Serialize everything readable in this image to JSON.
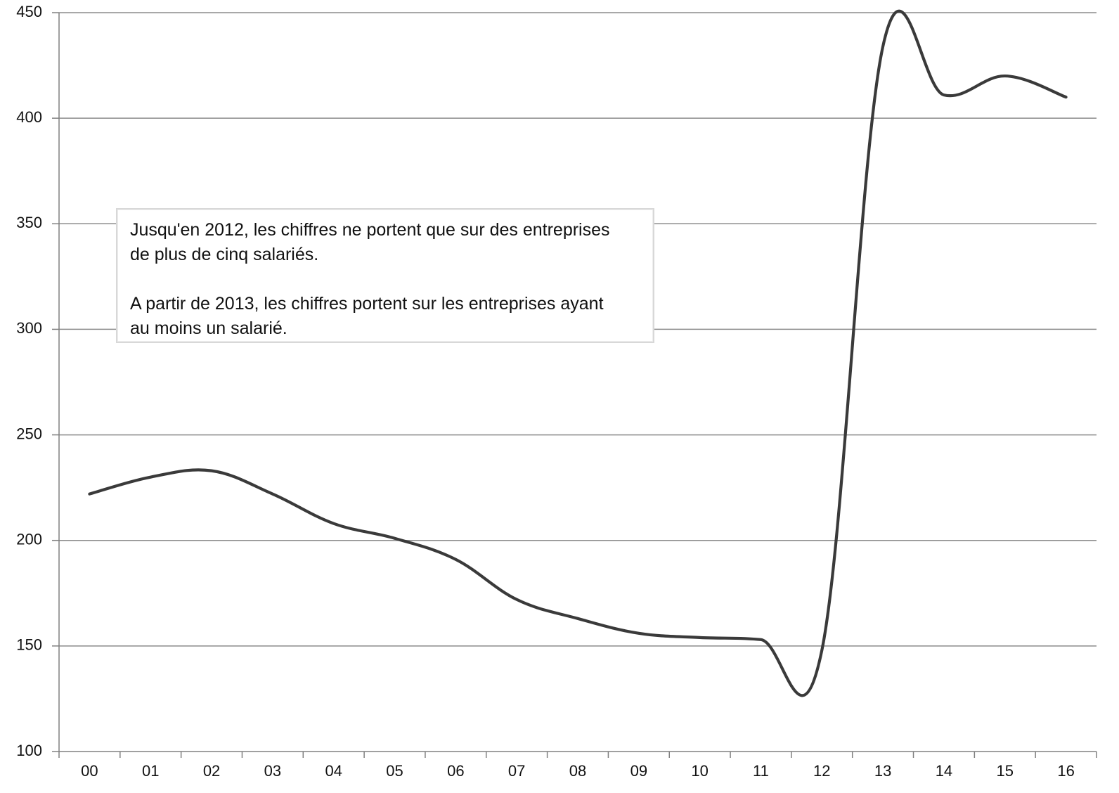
{
  "chart_data": {
    "type": "line",
    "title": "",
    "xlabel": "",
    "ylabel": "",
    "categories": [
      "00",
      "01",
      "02",
      "03",
      "04",
      "05",
      "06",
      "07",
      "08",
      "09",
      "10",
      "11",
      "12",
      "13",
      "14",
      "15",
      "16"
    ],
    "y_ticks": [
      100,
      150,
      200,
      250,
      300,
      350,
      400,
      450
    ],
    "ylim": [
      100,
      450
    ],
    "grid": true,
    "legend": "none",
    "series": [
      {
        "values": [
          222,
          230,
          233,
          222,
          208,
          201,
          191,
          172,
          163,
          156,
          154,
          153,
          148,
          434,
          411,
          420,
          410
        ],
        "color": "#3a3a3a"
      }
    ],
    "annotations": [
      {
        "text_lines": [
          "Jusqu'en 2012, les chiffres ne portent que sur des entreprises",
          "de plus de cinq salariés.",
          "A partir de 2013, les chiffres portent sur les entreprises ayant",
          "au moins un salarié."
        ]
      }
    ]
  }
}
